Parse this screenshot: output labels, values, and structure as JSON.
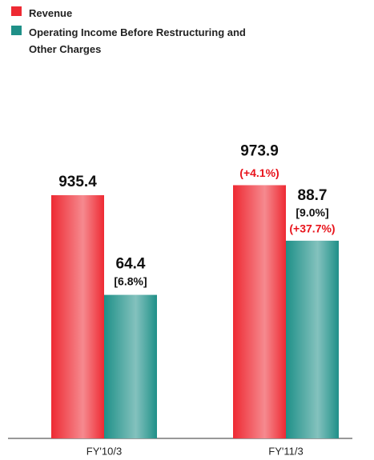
{
  "chart_data": {
    "type": "bar",
    "categories": [
      "FY'10/3",
      "FY'11/3"
    ],
    "series": [
      {
        "name": "Revenue",
        "color": "#ee2a33",
        "values": [
          935.4,
          973.9
        ],
        "growth_labels": [
          null,
          "(+4.1%)"
        ]
      },
      {
        "name": "Operating Income Before Restructuring and Other Charges",
        "color": "#1f9088",
        "axis": "y2",
        "values": [
          64.4,
          88.7
        ],
        "margin_labels": [
          "[6.8%]",
          "[9.0%]"
        ],
        "growth_labels": [
          null,
          "(+37.7%)"
        ]
      }
    ],
    "ylim": [
      0,
      1200
    ],
    "y2lim": [
      0,
      140
    ],
    "grid": false
  }
}
